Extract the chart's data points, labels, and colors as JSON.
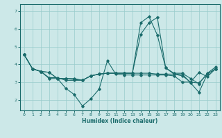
{
  "xlabel": "Humidex (Indice chaleur)",
  "bg_color": "#cce8e8",
  "line_color": "#1a6b6b",
  "grid_color": "#99cccc",
  "xlim": [
    -0.5,
    23.5
  ],
  "ylim": [
    1.4,
    7.4
  ],
  "xticks": [
    0,
    1,
    2,
    3,
    4,
    5,
    6,
    7,
    8,
    9,
    10,
    11,
    12,
    13,
    14,
    15,
    16,
    17,
    18,
    19,
    20,
    21,
    22,
    23
  ],
  "yticks": [
    2,
    3,
    4,
    5,
    6,
    7
  ],
  "lines": [
    [
      4.55,
      3.75,
      3.6,
      3.2,
      3.2,
      2.65,
      2.3,
      1.65,
      2.05,
      2.6,
      4.2,
      3.45,
      3.4,
      3.4,
      3.4,
      3.4,
      3.4,
      3.4,
      3.35,
      3.0,
      3.0,
      3.55,
      3.3,
      3.75
    ],
    [
      4.55,
      3.75,
      3.6,
      3.55,
      3.2,
      3.2,
      3.2,
      3.1,
      3.35,
      3.45,
      3.5,
      3.5,
      3.5,
      3.5,
      6.35,
      6.7,
      5.65,
      3.8,
      3.45,
      3.45,
      2.95,
      2.42,
      3.45,
      3.75
    ],
    [
      4.55,
      3.75,
      3.6,
      3.25,
      3.25,
      3.1,
      3.1,
      3.1,
      3.35,
      3.45,
      3.5,
      3.5,
      3.5,
      3.5,
      5.7,
      6.35,
      6.65,
      3.8,
      3.5,
      3.5,
      3.2,
      2.9,
      3.5,
      3.85
    ],
    [
      4.55,
      3.75,
      3.6,
      3.55,
      3.2,
      3.2,
      3.15,
      3.1,
      3.35,
      3.45,
      3.5,
      3.5,
      3.5,
      3.5,
      3.5,
      3.5,
      3.45,
      3.45,
      3.45,
      3.35,
      3.0,
      2.95,
      3.45,
      3.75
    ]
  ]
}
